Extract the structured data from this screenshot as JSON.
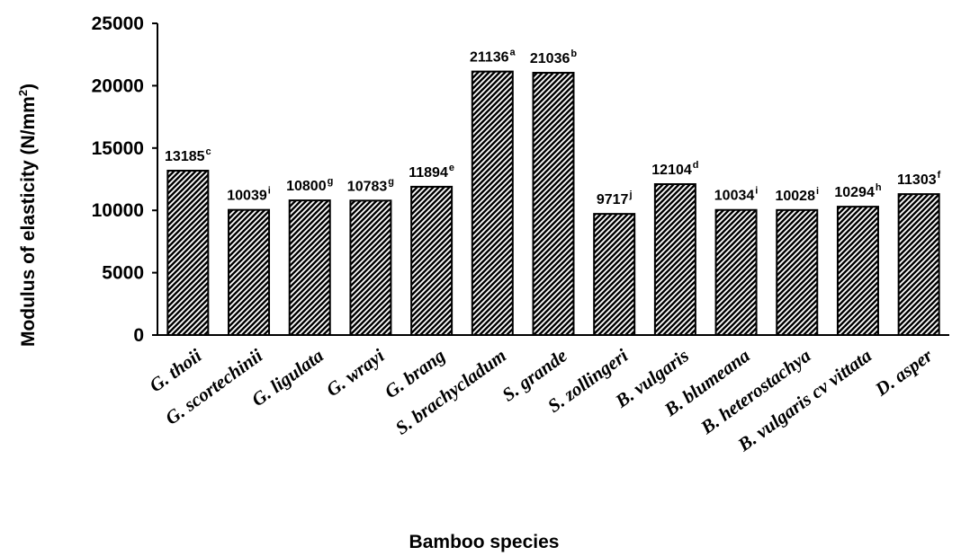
{
  "chart_data": {
    "type": "bar",
    "categories": [
      "G. thoii",
      "G. scortechinii",
      "G. ligulata",
      "G.  wrayi",
      "G. brang",
      "S. brachycladum",
      "S. grande",
      "S. zollingeri",
      "B. vulgaris",
      "B. blumeana",
      "B. heterostachya",
      "B. vulgaris cv vittata",
      "D. asper"
    ],
    "values": [
      13185,
      10039,
      10800,
      10783,
      11894,
      21136,
      21036,
      9717,
      12104,
      10034,
      10028,
      10294,
      11303
    ],
    "value_labels": [
      "13185",
      "10039",
      "10800",
      "10783",
      "11894",
      "21136",
      "21036",
      "9717",
      "12104",
      "10034",
      "10028",
      "10294",
      "11303"
    ],
    "significance_letters": [
      "c",
      "i",
      "g",
      "g",
      "e",
      "a",
      "b",
      "j",
      "d",
      "i",
      "i",
      "h",
      "f"
    ],
    "xlabel": "Bamboo species",
    "ylabel": "Modulus of elasticity (N/mm",
    "ylabel_superscript": "2",
    "ylabel_suffix": ")",
    "ylim": [
      0,
      25000
    ],
    "yticks": [
      "0",
      "5000",
      "10000",
      "15000",
      "20000",
      "25000"
    ],
    "bar_fill": "diagonal-hatch",
    "bar_color": "#000000",
    "grid": false,
    "legend": "none"
  }
}
